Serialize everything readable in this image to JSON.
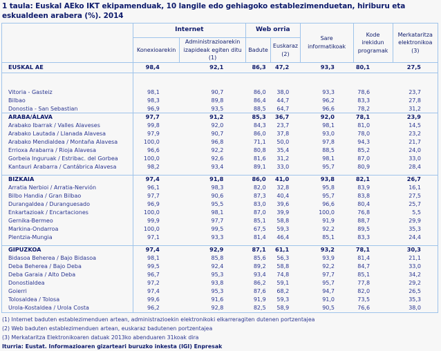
{
  "title": "1 taula: Euskal AEko IKT ekipamenduak, 10 langile edo gehiagoko establezimenduetan, hiriburu eta eskualdeen arabera (%). 2014",
  "header": {
    "groups": {
      "internet": "Internet",
      "web": "Web orria"
    },
    "columns": {
      "konexioa": "Konexioarekin",
      "administrazioa": "Administrazioarekin izapideak egiten ditu (1)",
      "badute": "Badute",
      "euskaraz": "Euskaraz (2)",
      "sare": "Sare informatikoak",
      "kode": "Kode irekidun programak",
      "merkataritza": "Merkataritza elektronikoa (3)"
    }
  },
  "rows": {
    "total": {
      "label": "EUSKAL AE",
      "values": [
        "98,4",
        "92,1",
        "86,3",
        "47,2",
        "93,3",
        "80,1",
        "27,5"
      ]
    },
    "capitals": [
      {
        "label": "Vitoria - Gasteiz",
        "values": [
          "98,1",
          "90,7",
          "86,0",
          "38,0",
          "93,3",
          "78,6",
          "23,7"
        ]
      },
      {
        "label": "Bilbao",
        "values": [
          "98,3",
          "89,8",
          "86,4",
          "44,7",
          "96,2",
          "83,3",
          "27,8"
        ]
      },
      {
        "label": "Donostia - San Sebastian",
        "values": [
          "96,9",
          "93,5",
          "88,5",
          "64,7",
          "96,6",
          "78,2",
          "31,2"
        ]
      }
    ],
    "araba": {
      "label": "ARABA/ÁLAVA",
      "values": [
        "97,7",
        "91,2",
        "85,3",
        "36,7",
        "92,0",
        "78,1",
        "23,9"
      ],
      "regions": [
        {
          "label": "Arabako Ibarrak  /  Valles Alaveses",
          "values": [
            "99,8",
            "92,0",
            "84,3",
            "23,7",
            "98,1",
            "81,0",
            "14,5"
          ]
        },
        {
          "label": "Arabako Lautada  /  Llanada Alavesa",
          "values": [
            "97,9",
            "90,7",
            "86,0",
            "37,8",
            "93,0",
            "78,0",
            "23,2"
          ]
        },
        {
          "label": "Arabako Mendialdea  /  Montaña Alavesa",
          "values": [
            "100,0",
            "96,8",
            "71,1",
            "50,0",
            "97,8",
            "94,3",
            "21,7"
          ]
        },
        {
          "label": "Errioxa Arabarra  /  Rioja Alavesa",
          "values": [
            "96,6",
            "92,2",
            "80,8",
            "35,4",
            "88,5",
            "85,2",
            "24,0"
          ]
        },
        {
          "label": "Gorbeia Inguruak  /  Estribac. del Gorbea",
          "values": [
            "100,0",
            "92,6",
            "81,6",
            "31,2",
            "98,1",
            "87,0",
            "33,0"
          ]
        },
        {
          "label": "Kantauri Arabarra  /  Cantábrica Alavesa",
          "values": [
            "98,2",
            "93,4",
            "89,1",
            "33,0",
            "95,7",
            "80,9",
            "28,4"
          ]
        }
      ]
    },
    "bizkaia": {
      "label": "BIZKAIA",
      "values": [
        "97,4",
        "91,8",
        "86,0",
        "41,0",
        "93,8",
        "82,1",
        "26,7"
      ],
      "regions": [
        {
          "label": "Arratia Nerbioi  /  Arratia-Nervión",
          "values": [
            "96,1",
            "98,3",
            "82,0",
            "32,8",
            "95,8",
            "83,9",
            "16,1"
          ]
        },
        {
          "label": "Bilbo Handia  /  Gran Bilbao",
          "values": [
            "97,7",
            "90,6",
            "87,3",
            "40,4",
            "95,7",
            "83,8",
            "27,5"
          ]
        },
        {
          "label": "Durangaldea  /  Duranguesado",
          "values": [
            "96,9",
            "95,5",
            "83,0",
            "39,6",
            "96,6",
            "80,4",
            "25,7"
          ]
        },
        {
          "label": "Enkartazioak  /  Encartaciones",
          "values": [
            "100,0",
            "98,1",
            "87,0",
            "39,9",
            "100,0",
            "76,8",
            "5,5"
          ]
        },
        {
          "label": "Gernika-Bermeo",
          "values": [
            "99,9",
            "97,7",
            "85,1",
            "58,8",
            "91,9",
            "88,7",
            "29,9"
          ]
        },
        {
          "label": "Markina-Ondarroa",
          "values": [
            "100,0",
            "99,5",
            "67,5",
            "59,3",
            "92,2",
            "89,5",
            "35,3"
          ]
        },
        {
          "label": "Plentzia-Mungia",
          "values": [
            "97,1",
            "93,3",
            "81,4",
            "46,4",
            "85,1",
            "83,3",
            "24,4"
          ]
        }
      ]
    },
    "gipuzkoa": {
      "label": "GIPUZKOA",
      "values": [
        "97,4",
        "92,9",
        "87,1",
        "61,1",
        "93,2",
        "78,1",
        "30,3"
      ],
      "regions": [
        {
          "label": "Bidasoa Beherea  /  Bajo Bidasoa",
          "values": [
            "98,1",
            "85,8",
            "85,6",
            "56,3",
            "93,9",
            "81,4",
            "21,1"
          ]
        },
        {
          "label": "Deba Beherea  /  Bajo Deba",
          "values": [
            "99,5",
            "92,4",
            "89,2",
            "58,8",
            "92,2",
            "84,7",
            "33,0"
          ]
        },
        {
          "label": "Deba Garaia  /  Alto Deba",
          "values": [
            "96,7",
            "95,3",
            "93,4",
            "74,8",
            "97,7",
            "85,1",
            "34,2"
          ]
        },
        {
          "label": "Donostialdea",
          "values": [
            "97,2",
            "93,8",
            "86,2",
            "59,1",
            "95,7",
            "77,8",
            "29,2"
          ]
        },
        {
          "label": "Goierri",
          "values": [
            "97,4",
            "95,3",
            "87,6",
            "68,2",
            "94,7",
            "82,0",
            "26,5"
          ]
        },
        {
          "label": "Tolosaldea  /  Tolosa",
          "values": [
            "99,6",
            "91,6",
            "91,9",
            "59,3",
            "91,0",
            "73,5",
            "35,3"
          ]
        },
        {
          "label": "Urola-Kostaldea  /  Urola Costa",
          "values": [
            "96,2",
            "92,8",
            "82,5",
            "58,9",
            "90,5",
            "76,6",
            "38,0"
          ]
        }
      ]
    }
  },
  "notes": [
    "(1) Internet baduten establezimenduen artean, administrazioekin elektronikoki elkarreragiten dutenen portzentajea",
    "(2) Web baduten establezimenduen artean, euskaraz badutenen portzentajea",
    "(3) Merkataritza Elektronikoaren datuak 2013ko  abenduaren 31koak dira"
  ],
  "source": "Iturria: Eustat. Informazioaren gizarteari buruzko inkesta (IGI) Enpresak"
}
